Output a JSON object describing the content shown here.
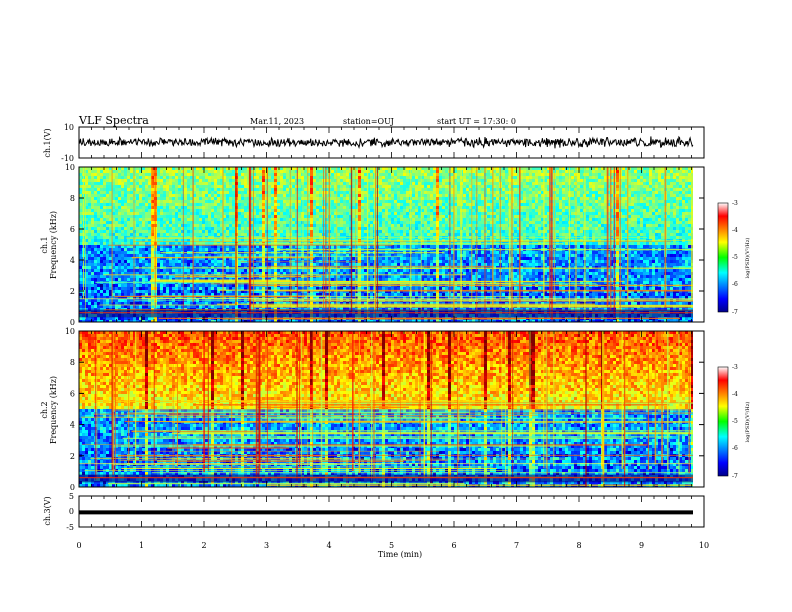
{
  "header": {
    "title": "VLF Spectra",
    "date": "Mar.11, 2023",
    "station": "station=OUJ",
    "start": "start UT = 17:30: 0"
  },
  "chart_data": [
    {
      "type": "line",
      "ylabel": "ch.1(V)",
      "ylim": [
        -10,
        10
      ],
      "yticks": [
        "10",
        "-10"
      ],
      "series": [
        {
          "values": [
            0,
            0,
            0,
            0,
            0,
            0,
            0,
            0,
            0,
            0
          ]
        }
      ]
    },
    {
      "type": "heatmap",
      "ylabel": "ch.1",
      "ylabel2": "Frequency (kHz)",
      "ylim": [
        0,
        10
      ],
      "yticks": [
        "0",
        "2",
        "4",
        "6",
        "8",
        "10"
      ],
      "colorbar": {
        "label": "log(PSD)(V²/Hz)",
        "ticks": [
          "-3",
          "-4",
          "-5",
          "-6",
          "-7"
        ],
        "range": [
          -7,
          -3
        ]
      }
    },
    {
      "type": "heatmap",
      "ylabel": "ch.2",
      "ylabel2": "Frequency (kHz)",
      "ylim": [
        0,
        10
      ],
      "yticks": [
        "0",
        "2",
        "4",
        "6",
        "8",
        "10"
      ],
      "colorbar": {
        "label": "log(PSD)(V²/Hz)",
        "ticks": [
          "-3",
          "-4",
          "-5",
          "-6",
          "-7"
        ],
        "range": [
          -7,
          -3
        ]
      }
    },
    {
      "type": "line",
      "ylabel": "ch.3(V)",
      "ylim": [
        -5,
        5
      ],
      "yticks": [
        "5",
        "0",
        "-5"
      ],
      "series": [
        {
          "values": [
            -0.3,
            -0.3,
            -0.3,
            -0.3,
            -0.3,
            -0.3,
            -0.3,
            -0.3,
            -0.3,
            -0.3
          ]
        }
      ]
    }
  ],
  "xaxis": {
    "label": "Time (min)",
    "range": [
      0,
      10
    ],
    "ticks": [
      "0",
      "1",
      "2",
      "3",
      "4",
      "5",
      "6",
      "7",
      "8",
      "9",
      "10"
    ]
  },
  "colors": {
    "jet": [
      "#000080",
      "#0000ff",
      "#00ffff",
      "#00ff00",
      "#ffff00",
      "#ff0000",
      "#800000"
    ],
    "trace": "#000000"
  }
}
